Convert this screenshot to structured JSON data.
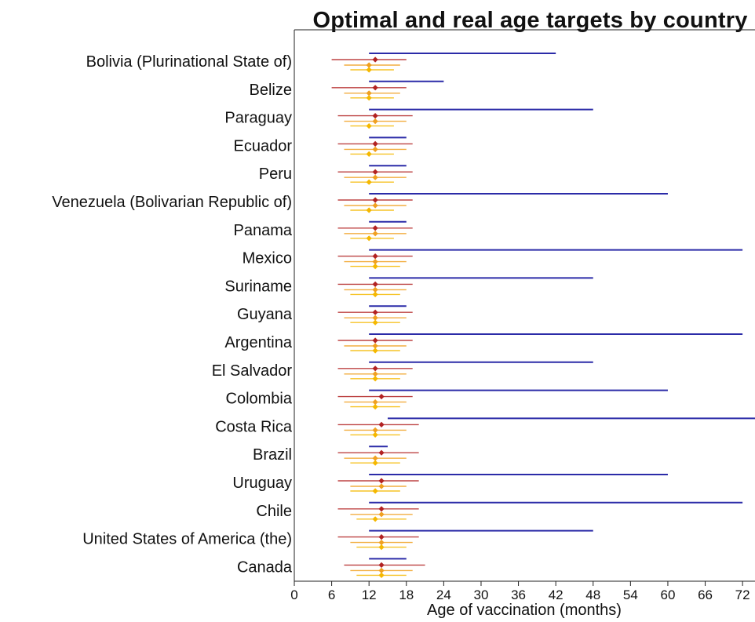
{
  "chart_data": {
    "type": "dot-range",
    "title": "Optimal and real age targets by country",
    "xlabel": "Age of vaccination (months)",
    "ylabel": "",
    "xlim": [
      0,
      74
    ],
    "xticks": [
      0,
      6,
      12,
      18,
      24,
      30,
      36,
      42,
      48,
      54,
      60,
      66,
      72
    ],
    "grid": false,
    "legend": "none",
    "colors": {
      "real_range": "#2b2ba8",
      "optimal_1": "#b22222",
      "optimal_2": "#f0a020",
      "optimal_3": "#f5b800",
      "axis": "#222222"
    },
    "series": [
      {
        "color": "#2b2ba8",
        "values": [
          [
            12,
            42
          ],
          [
            12,
            24
          ],
          [
            12,
            48
          ],
          [
            12,
            18
          ],
          [
            12,
            18
          ],
          [
            12,
            60
          ],
          [
            12,
            18
          ],
          [
            12,
            72
          ],
          [
            12,
            48
          ],
          [
            12,
            18
          ],
          [
            12,
            72
          ],
          [
            12,
            48
          ],
          [
            12,
            60
          ],
          [
            15,
            75
          ],
          [
            12,
            15
          ],
          [
            12,
            60
          ],
          [
            12,
            72
          ],
          [
            12,
            48
          ],
          [
            12,
            18
          ]
        ]
      },
      {
        "color": "#b22222",
        "values": [
          [
            13,
            6,
            18
          ],
          [
            13,
            6,
            18
          ],
          [
            13,
            7,
            19
          ],
          [
            13,
            7,
            19
          ],
          [
            13,
            7,
            19
          ],
          [
            13,
            7,
            19
          ],
          [
            13,
            7,
            19
          ],
          [
            13,
            7,
            19
          ],
          [
            13,
            7,
            19
          ],
          [
            13,
            7,
            19
          ],
          [
            13,
            7,
            19
          ],
          [
            13,
            7,
            19
          ],
          [
            14,
            7,
            19
          ],
          [
            14,
            7,
            20
          ],
          [
            14,
            7,
            20
          ],
          [
            14,
            7,
            20
          ],
          [
            14,
            7,
            20
          ],
          [
            14,
            7,
            20
          ],
          [
            14,
            8,
            21
          ]
        ]
      },
      {
        "color": "#f0a020",
        "values": [
          [
            12,
            8,
            17
          ],
          [
            12,
            8,
            17
          ],
          [
            13,
            8,
            18
          ],
          [
            13,
            8,
            18
          ],
          [
            13,
            8,
            18
          ],
          [
            13,
            8,
            18
          ],
          [
            13,
            8,
            18
          ],
          [
            13,
            8,
            18
          ],
          [
            13,
            8,
            18
          ],
          [
            13,
            8,
            18
          ],
          [
            13,
            8,
            18
          ],
          [
            13,
            8,
            18
          ],
          [
            13,
            8,
            18
          ],
          [
            13,
            8,
            18
          ],
          [
            13,
            8,
            18
          ],
          [
            14,
            9,
            18
          ],
          [
            14,
            9,
            19
          ],
          [
            14,
            9,
            19
          ],
          [
            14,
            9,
            19
          ]
        ]
      },
      {
        "color": "#f5b800",
        "values": [
          [
            12,
            9,
            16
          ],
          [
            12,
            9,
            16
          ],
          [
            12,
            9,
            16
          ],
          [
            12,
            9,
            16
          ],
          [
            12,
            9,
            16
          ],
          [
            12,
            9,
            16
          ],
          [
            12,
            9,
            16
          ],
          [
            13,
            9,
            17
          ],
          [
            13,
            9,
            17
          ],
          [
            13,
            9,
            17
          ],
          [
            13,
            9,
            17
          ],
          [
            13,
            9,
            17
          ],
          [
            13,
            9,
            17
          ],
          [
            13,
            9,
            17
          ],
          [
            13,
            9,
            17
          ],
          [
            13,
            9,
            17
          ],
          [
            13,
            10,
            18
          ],
          [
            14,
            10,
            18
          ],
          [
            14,
            10,
            18
          ]
        ]
      }
    ],
    "categories": [
      "Bolivia (Plurinational State of)",
      "Belize",
      "Paraguay",
      "Ecuador",
      "Peru",
      "Venezuela (Bolivarian Republic of)",
      "Panama",
      "Mexico",
      "Suriname",
      "Guyana",
      "Argentina",
      "El Salvador",
      "Colombia",
      "Costa Rica",
      "Brazil",
      "Uruguay",
      "Chile",
      "United States of America (the)",
      "Canada"
    ]
  }
}
